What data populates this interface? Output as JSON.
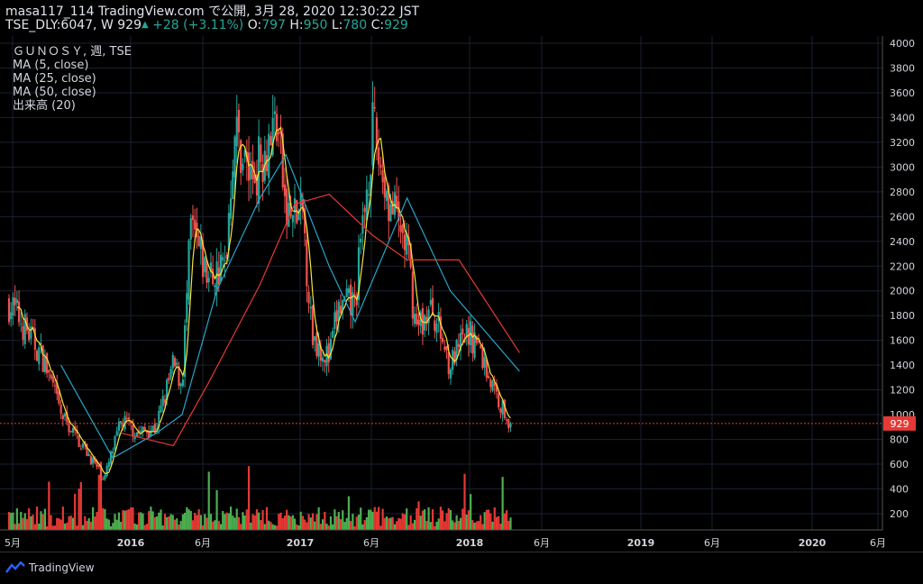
{
  "header": {
    "author_line": "masa117_114 TradingView.com で公開, 3月 28, 2020 12:30:22 JST",
    "symbol": "TSE_DLY:6047, W",
    "last_price": "929",
    "change": "+28 (+3.11%)",
    "open_label": "O:",
    "open_value": "797",
    "high_label": "H:",
    "high_value": "950",
    "low_label": "L:",
    "low_value": "780",
    "close_label": "C:",
    "close_value": "929"
  },
  "legend": {
    "title": "ＧＵＮＯＳＹ, 週, TSE",
    "ma5": "MA (5, close)",
    "ma25": "MA (25, close)",
    "ma50": "MA (50, close)",
    "volume": "出来高 (20)"
  },
  "footer": {
    "brand": "TradingView"
  },
  "colors": {
    "up": "#26a69a",
    "down": "#ef5350",
    "vol_up": "#4caf50",
    "vol_down": "#e53935",
    "ma5": "#f5e33b",
    "ma25": "#26a6c9",
    "ma50": "#e53935",
    "price_line": "#e53935",
    "grid": "#1c2030"
  },
  "chart_data": {
    "type": "candlestick",
    "x_axis_labels": [
      "5月",
      "2016",
      "6月",
      "2017",
      "6月",
      "2018",
      "6月",
      "2019",
      "6月",
      "2020",
      "6月"
    ],
    "y_axis_ticks": [
      200,
      400,
      600,
      800,
      1000,
      1200,
      1400,
      1600,
      1800,
      2000,
      2200,
      2400,
      2600,
      2800,
      3000,
      3200,
      3400,
      3600,
      3800,
      4000
    ],
    "ylim": [
      0,
      4000
    ],
    "last_price": 929,
    "price_key_points": [
      {
        "x": "2015-05",
        "price": 1900
      },
      {
        "x": "2015-06",
        "price": 1800
      },
      {
        "x": "2015-09",
        "price": 1450
      },
      {
        "x": "2015-11",
        "price": 1000
      },
      {
        "x": "2016-02",
        "price": 700
      },
      {
        "x": "2016-04",
        "price": 480
      },
      {
        "x": "2016-06",
        "price": 950
      },
      {
        "x": "2016-08",
        "price": 850
      },
      {
        "x": "2016-10",
        "price": 900
      },
      {
        "x": "2016-12",
        "price": 1400
      },
      {
        "x": "2017-01",
        "price": 1250
      },
      {
        "x": "2017-02",
        "price": 2500
      },
      {
        "x": "2017-04",
        "price": 2100
      },
      {
        "x": "2017-06",
        "price": 2200
      },
      {
        "x": "2017-07",
        "price": 3300
      },
      {
        "x": "2017-09",
        "price": 2900
      },
      {
        "x": "2017-12",
        "price": 3400
      },
      {
        "x": "2018-01",
        "price": 2600
      },
      {
        "x": "2018-03",
        "price": 2600
      },
      {
        "x": "2018-04",
        "price": 1650
      },
      {
        "x": "2018-06",
        "price": 1450
      },
      {
        "x": "2018-07",
        "price": 1850
      },
      {
        "x": "2018-09",
        "price": 1900
      },
      {
        "x": "2018-11",
        "price": 3300
      },
      {
        "x": "2019-01",
        "price": 2700
      },
      {
        "x": "2019-03",
        "price": 2350
      },
      {
        "x": "2019-04",
        "price": 1700
      },
      {
        "x": "2019-06",
        "price": 1850
      },
      {
        "x": "2019-08",
        "price": 1400
      },
      {
        "x": "2019-10",
        "price": 1650
      },
      {
        "x": "2019-11",
        "price": 1600
      },
      {
        "x": "2020-01",
        "price": 1200
      },
      {
        "x": "2020-03",
        "price": 929
      }
    ],
    "ma25_key_points": [
      {
        "x": "2015-11",
        "price": 1400
      },
      {
        "x": "2016-05",
        "price": 650
      },
      {
        "x": "2016-10",
        "price": 850
      },
      {
        "x": "2017-01",
        "price": 1000
      },
      {
        "x": "2017-05",
        "price": 2000
      },
      {
        "x": "2017-10",
        "price": 2750
      },
      {
        "x": "2018-01",
        "price": 3100
      },
      {
        "x": "2018-06",
        "price": 2200
      },
      {
        "x": "2018-09",
        "price": 1750
      },
      {
        "x": "2019-03",
        "price": 2750
      },
      {
        "x": "2019-08",
        "price": 2000
      },
      {
        "x": "2020-04",
        "price": 1350
      }
    ],
    "ma50_key_points": [
      {
        "x": "2016-06",
        "price": 850
      },
      {
        "x": "2016-12",
        "price": 750
      },
      {
        "x": "2017-04",
        "price": 1250
      },
      {
        "x": "2017-10",
        "price": 2050
      },
      {
        "x": "2018-02",
        "price": 2700
      },
      {
        "x": "2018-06",
        "price": 2780
      },
      {
        "x": "2018-11",
        "price": 2450
      },
      {
        "x": "2019-03",
        "price": 2250
      },
      {
        "x": "2019-09",
        "price": 2250
      },
      {
        "x": "2020-04",
        "price": 1500
      }
    ]
  }
}
